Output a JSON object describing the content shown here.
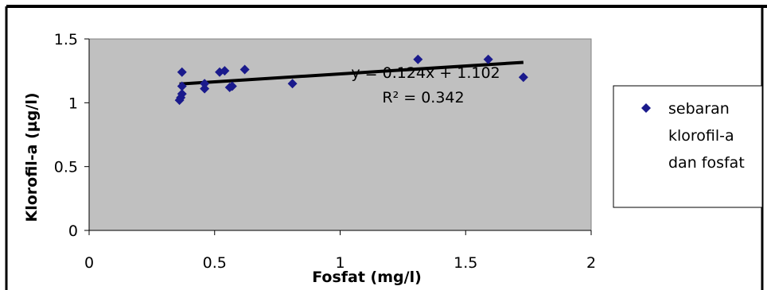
{
  "chart_data": {
    "type": "scatter",
    "title": "",
    "xlabel": "Fosfat (mg/l)",
    "ylabel": "Klorofil-a (µg/l)",
    "xlim": [
      0,
      2
    ],
    "ylim": [
      0,
      1.5
    ],
    "x_ticks": [
      "0",
      "0.5",
      "1",
      "1.5",
      "2"
    ],
    "y_ticks": [
      "0",
      "0.5",
      "1",
      "1.5"
    ],
    "grid": false,
    "legend_position": "right",
    "colors": {
      "plot_area": "#c0c0c0",
      "marker": "#1a1a8c",
      "trendline": "#000000",
      "border": "#000000"
    },
    "series": [
      {
        "name": "sebaran klorofil-a dan fosfat",
        "marker": "diamond",
        "points": [
          {
            "x": 0.36,
            "y": 1.02
          },
          {
            "x": 0.365,
            "y": 1.04
          },
          {
            "x": 0.37,
            "y": 1.07
          },
          {
            "x": 0.37,
            "y": 1.13
          },
          {
            "x": 0.37,
            "y": 1.24
          },
          {
            "x": 0.46,
            "y": 1.11
          },
          {
            "x": 0.46,
            "y": 1.15
          },
          {
            "x": 0.52,
            "y": 1.24
          },
          {
            "x": 0.54,
            "y": 1.25
          },
          {
            "x": 0.56,
            "y": 1.12
          },
          {
            "x": 0.57,
            "y": 1.13
          },
          {
            "x": 0.62,
            "y": 1.26
          },
          {
            "x": 0.81,
            "y": 1.15
          },
          {
            "x": 1.31,
            "y": 1.34
          },
          {
            "x": 1.59,
            "y": 1.34
          },
          {
            "x": 1.73,
            "y": 1.2
          }
        ]
      }
    ],
    "trendline": {
      "slope": 0.124,
      "intercept": 1.102,
      "x_range": [
        0.36,
        1.73
      ],
      "equation": "y = 0.124x + 1.102",
      "r_squared": "R² = 0.342"
    }
  }
}
